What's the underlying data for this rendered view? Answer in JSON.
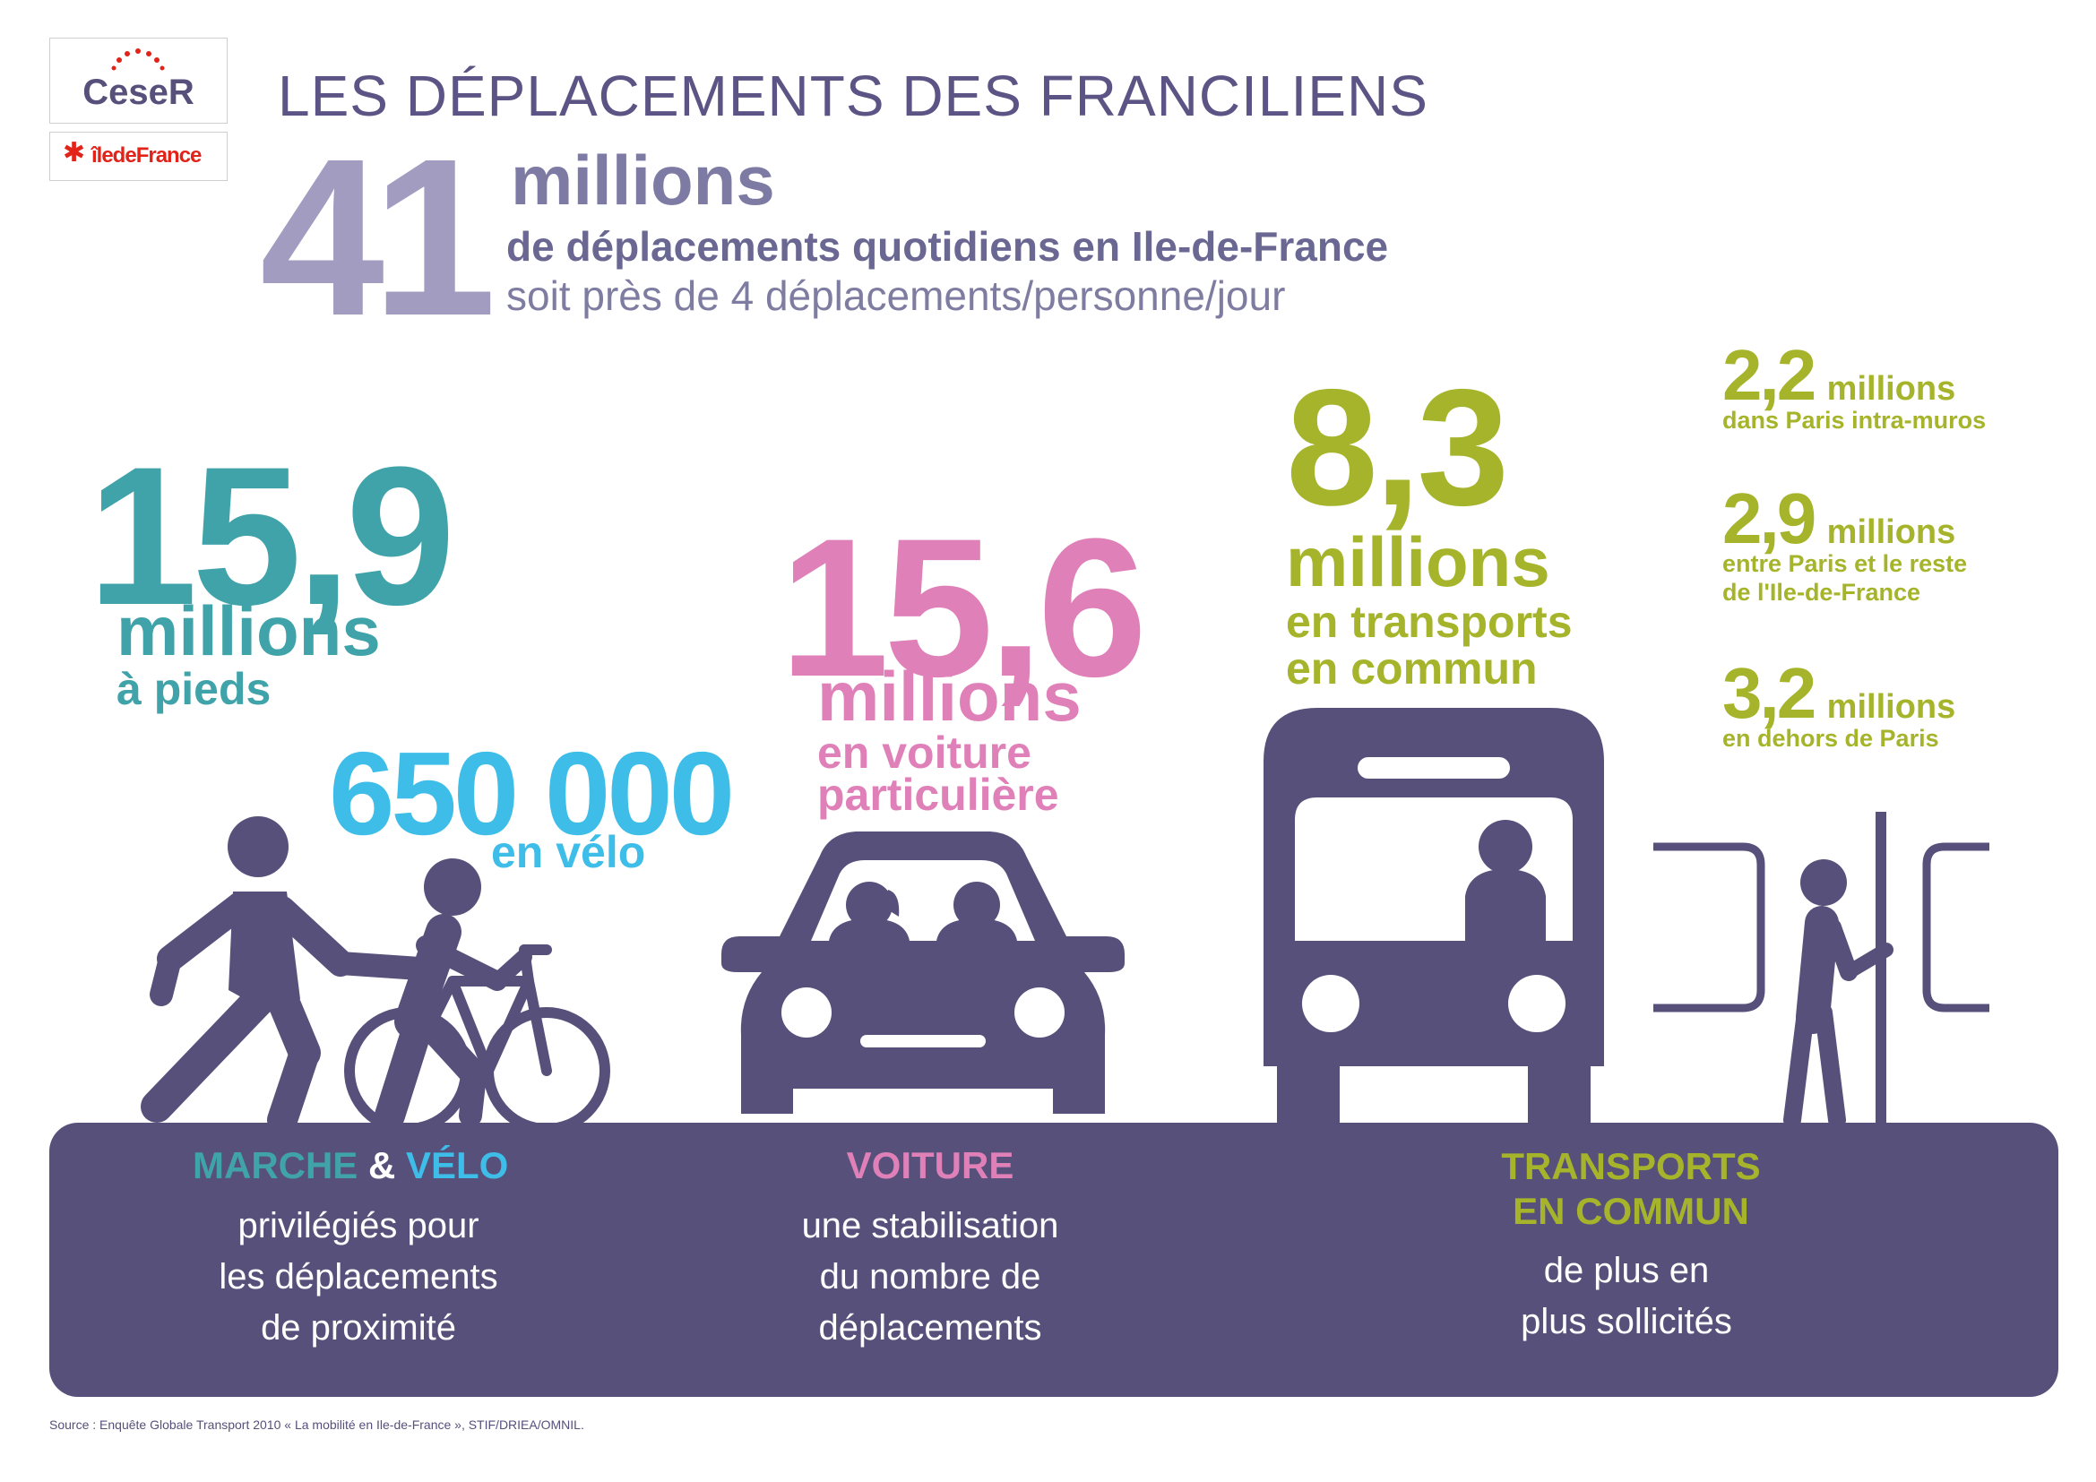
{
  "logos": {
    "ceser": "CeseR",
    "iledefrance": "îledeFrance"
  },
  "title": "LES DÉPLACEMENTS DES FRANCILIENS",
  "total": {
    "value": "41",
    "unit": "millions",
    "line1": "de déplacements quotidiens en Ile-de-France",
    "line2": "soit près de 4 déplacements/personne/jour"
  },
  "walk": {
    "value": "15,9",
    "unit": "millions",
    "label": "à pieds"
  },
  "bike": {
    "value": "650 000",
    "label": "en vélo"
  },
  "car": {
    "value": "15,6",
    "unit": "millions",
    "label1": "en voiture",
    "label2": "particulière"
  },
  "transit": {
    "value": "8,3",
    "unit": "millions",
    "label1": "en transports",
    "label2": "en commun",
    "breakdown": [
      {
        "value": "2,2",
        "unit": "millions",
        "desc1": "dans Paris intra-muros",
        "desc2": ""
      },
      {
        "value": "2,9",
        "unit": "millions",
        "desc1": "entre Paris et le reste",
        "desc2": "de l'Ile-de-France"
      },
      {
        "value": "3,2",
        "unit": "millions",
        "desc1": "en dehors de Paris",
        "desc2": ""
      }
    ]
  },
  "band": {
    "walk_head1": "MARCHE",
    "walk_amp": " & ",
    "walk_head2": "VÉLO",
    "walk_text": [
      "privilégiés pour",
      "les déplacements",
      "de proximité"
    ],
    "car_head": "VOITURE",
    "car_text": [
      "une stabilisation",
      "du nombre de",
      "déplacements"
    ],
    "transit_head": [
      "TRANSPORTS",
      "EN COMMUN"
    ],
    "transit_text": [
      "de plus en",
      "plus sollicités"
    ]
  },
  "source": "Source : Enquête Globale Transport 2010 « La mobilité en Ile-de-France », STIF/DRIEA/OMNIL.",
  "colors": {
    "purple": "#57507b",
    "teal": "#3fa3a9",
    "sky": "#3dbde8",
    "pink": "#e080b8",
    "olive": "#a5b42a",
    "lavender": "#a19cc0",
    "red": "#e2231a"
  }
}
